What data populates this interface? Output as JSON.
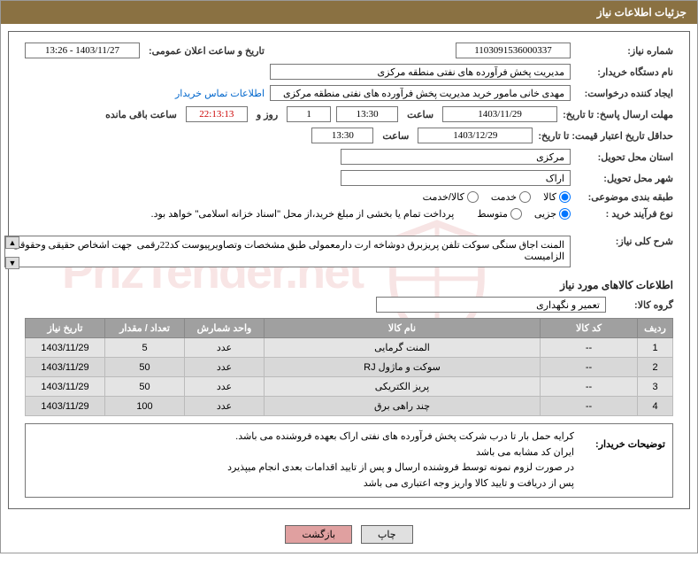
{
  "header": {
    "title": "جزئیات اطلاعات نیاز"
  },
  "fields": {
    "need_no_label": "شماره نیاز:",
    "need_no": "1103091536000337",
    "announce_label": "تاریخ و ساعت اعلان عمومی:",
    "announce_val": "1403/11/27 - 13:26",
    "buyer_org_label": "نام دستگاه خریدار:",
    "buyer_org": "مدیریت پخش فرآورده های نفتی منطقه مرکزی",
    "requester_label": "ایجاد کننده درخواست:",
    "requester": "مهدی خانی مامور خرید مدیریت پخش فرآورده های نفتی منطقه مرکزی",
    "contact_link": "اطلاعات تماس خریدار",
    "deadline_label": "مهلت ارسال پاسخ: تا تاریخ:",
    "deadline_date": "1403/11/29",
    "time_label": "ساعت",
    "deadline_time": "13:30",
    "days_val": "1",
    "days_label": "روز و",
    "countdown": "22:13:13",
    "remaining_label": "ساعت باقی مانده",
    "validity_label": "حداقل تاریخ اعتبار قیمت: تا تاریخ:",
    "validity_date": "1403/12/29",
    "validity_time": "13:30",
    "province_label": "استان محل تحویل:",
    "province": "مرکزی",
    "city_label": "شهر محل تحویل:",
    "city": "اراک",
    "category_label": "طبقه بندی موضوعی:",
    "cat_goods": "کالا",
    "cat_service": "خدمت",
    "cat_both": "کالا/خدمت",
    "process_label": "نوع فرآیند خرید :",
    "proc_minor": "جزیی",
    "proc_medium": "متوسط",
    "process_note": "پرداخت تمام یا بخشی از مبلغ خرید،از محل \"اسناد خزانه اسلامی\" خواهد بود.",
    "desc_label": "شرح کلی نیاز:",
    "desc_text": "المنت اجاق سنگی سوکت تلفن پریزبرق دوشاخه ارت دارمعمولی طبق مشخصات وتصاویرپیوست کد22رقمی  جهت اشخاص حقیقی وحقوقی الزامیست",
    "items_title": "اطلاعات کالاهای مورد نیاز",
    "group_label": "گروه کالا:",
    "group_val": "تعمیر و نگهداری"
  },
  "table": {
    "headers": {
      "row": "ردیف",
      "code": "کد کالا",
      "name": "نام کالا",
      "unit": "واحد شمارش",
      "qty": "تعداد / مقدار",
      "date": "تاریخ نیاز"
    },
    "rows": [
      {
        "n": "1",
        "code": "--",
        "name": "المنت گرمایی",
        "unit": "عدد",
        "qty": "5",
        "date": "1403/11/29"
      },
      {
        "n": "2",
        "code": "--",
        "name": "سوکت و ماژول RJ",
        "unit": "عدد",
        "qty": "50",
        "date": "1403/11/29"
      },
      {
        "n": "3",
        "code": "--",
        "name": "پریز الکتریکی",
        "unit": "عدد",
        "qty": "50",
        "date": "1403/11/29"
      },
      {
        "n": "4",
        "code": "--",
        "name": "چند راهی برق",
        "unit": "عدد",
        "qty": "100",
        "date": "1403/11/29"
      }
    ]
  },
  "notes": {
    "label": "توضیحات خریدار:",
    "line1": "کرایه حمل بار تا درب شرکت  پخش فرآورده های نفتی اراک بعهده فروشنده می باشد.",
    "line2": "ایران کد مشابه می باشد",
    "line3": "در صورت لزوم نمونه توسط فروشنده ارسال و پس از تایید اقدامات بعدی انجام میپذیرد",
    "line4": "پس از دریافت و تایید کالا واریز وجه اعتباری می باشد"
  },
  "buttons": {
    "print": "چاپ",
    "back": "بازگشت"
  }
}
